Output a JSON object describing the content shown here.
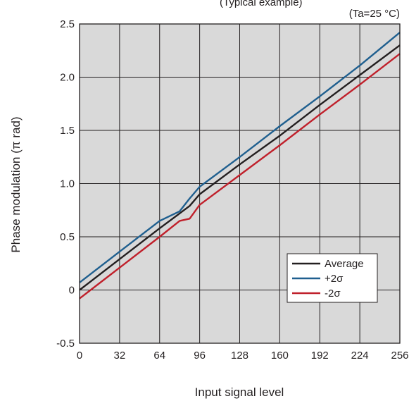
{
  "figure": {
    "caption_fragment": "(Typical example)"
  },
  "chart_data": {
    "type": "line",
    "condition_note": "(Ta=25 °C)",
    "xlabel": "Input signal level",
    "ylabel": "Phase modulation (π rad)",
    "xlim": [
      0,
      256
    ],
    "ylim": [
      -0.5,
      2.5
    ],
    "xticks": [
      0,
      32,
      64,
      96,
      128,
      160,
      192,
      224,
      256
    ],
    "xtick_labels": [
      "0",
      "32",
      "64",
      "96",
      "128",
      "160",
      "192",
      "224",
      "256"
    ],
    "yticks": [
      -0.5,
      0,
      0.5,
      1.0,
      1.5,
      2.0,
      2.5
    ],
    "ytick_labels": [
      "-0.5",
      "0",
      "0.5",
      "1.0",
      "1.5",
      "2.0",
      "2.5"
    ],
    "grid": true,
    "legend_position": "lower-right",
    "colors": {
      "plot_background": "#d9d9d9",
      "grid": "#231f20",
      "axes": "#231f20"
    },
    "series": [
      {
        "name": "Average",
        "color": "#231f20",
        "x": [
          0,
          32,
          64,
          80,
          88,
          96,
          128,
          160,
          192,
          224,
          256
        ],
        "y": [
          0.0,
          0.29,
          0.58,
          0.72,
          0.79,
          0.9,
          1.18,
          1.45,
          1.74,
          2.02,
          2.3
        ]
      },
      {
        "name": "+2σ",
        "color": "#1f5f8f",
        "x": [
          0,
          32,
          64,
          80,
          88,
          96,
          128,
          160,
          192,
          224,
          256
        ],
        "y": [
          0.07,
          0.36,
          0.65,
          0.74,
          0.86,
          0.97,
          1.25,
          1.54,
          1.82,
          2.11,
          2.42
        ]
      },
      {
        "name": "-2σ",
        "color": "#c0202b",
        "x": [
          0,
          32,
          64,
          80,
          88,
          96,
          128,
          160,
          192,
          224,
          256
        ],
        "y": [
          -0.08,
          0.21,
          0.5,
          0.65,
          0.67,
          0.8,
          1.08,
          1.36,
          1.65,
          1.93,
          2.22
        ]
      }
    ]
  }
}
